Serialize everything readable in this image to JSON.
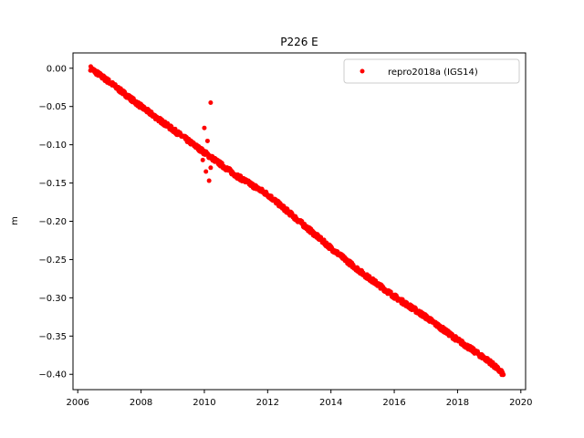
{
  "chart_data": {
    "type": "scatter",
    "title": "P226 E",
    "xlabel": "",
    "ylabel": "m",
    "xlim": [
      2005.85,
      2020.15
    ],
    "ylim": [
      -0.42,
      0.02
    ],
    "xticks": [
      2006,
      2008,
      2010,
      2012,
      2014,
      2016,
      2018,
      2020
    ],
    "xtick_labels": [
      "2006",
      "2008",
      "2010",
      "2012",
      "2014",
      "2016",
      "2018",
      "2020"
    ],
    "yticks": [
      0.0,
      -0.05,
      -0.1,
      -0.15,
      -0.2,
      -0.25,
      -0.3,
      -0.35,
      -0.4
    ],
    "ytick_labels": [
      "0.00",
      "−0.05",
      "−0.10",
      "−0.15",
      "−0.20",
      "−0.25",
      "−0.30",
      "−0.35",
      "−0.40"
    ],
    "grid": false,
    "legend_position": "upper right",
    "series": [
      {
        "name": "repro2018a (IGS14)",
        "color": "#ff0000",
        "marker": "circle",
        "trend_x": [
          2006.4,
          2007.0,
          2008.0,
          2009.0,
          2010.0,
          2011.0,
          2012.0,
          2013.0,
          2014.0,
          2015.0,
          2016.0,
          2017.0,
          2018.0,
          2019.0,
          2019.45
        ],
        "trend_y": [
          0.0,
          -0.018,
          -0.05,
          -0.08,
          -0.11,
          -0.14,
          -0.165,
          -0.2,
          -0.235,
          -0.268,
          -0.298,
          -0.325,
          -0.355,
          -0.383,
          -0.4
        ],
        "outliers": [
          {
            "x": 2010.0,
            "y": -0.078
          },
          {
            "x": 2010.1,
            "y": -0.095
          },
          {
            "x": 2010.2,
            "y": -0.045
          },
          {
            "x": 2010.05,
            "y": -0.135
          },
          {
            "x": 2010.15,
            "y": -0.147
          },
          {
            "x": 2010.2,
            "y": -0.13
          },
          {
            "x": 2009.95,
            "y": -0.12
          }
        ]
      }
    ]
  }
}
